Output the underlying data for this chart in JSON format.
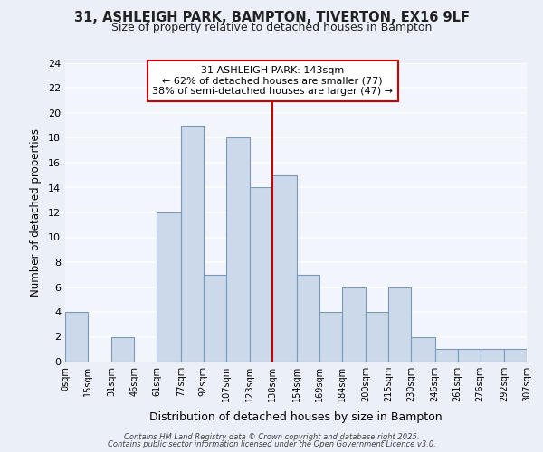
{
  "title_line1": "31, ASHLEIGH PARK, BAMPTON, TIVERTON, EX16 9LF",
  "title_line2": "Size of property relative to detached houses in Bampton",
  "xlabel": "Distribution of detached houses by size in Bampton",
  "ylabel": "Number of detached properties",
  "bin_edges": [
    0,
    15,
    31,
    46,
    61,
    77,
    92,
    107,
    123,
    138,
    154,
    169,
    184,
    200,
    215,
    230,
    246,
    261,
    276,
    292,
    307
  ],
  "values": [
    4,
    0,
    2,
    0,
    12,
    19,
    7,
    18,
    14,
    15,
    7,
    4,
    6,
    4,
    6,
    2,
    1,
    1,
    1,
    1
  ],
  "tick_labels": [
    "0sqm",
    "15sqm",
    "31sqm",
    "46sqm",
    "61sqm",
    "77sqm",
    "92sqm",
    "107sqm",
    "123sqm",
    "138sqm",
    "154sqm",
    "169sqm",
    "184sqm",
    "200sqm",
    "215sqm",
    "230sqm",
    "246sqm",
    "261sqm",
    "276sqm",
    "292sqm",
    "307sqm"
  ],
  "bar_color": "#ccd9ea",
  "bar_edge_color": "#7799bb",
  "reference_line_x": 138,
  "annotation_title": "31 ASHLEIGH PARK: 143sqm",
  "annotation_line1": "← 62% of detached houses are smaller (77)",
  "annotation_line2": "38% of semi-detached houses are larger (47) →",
  "annotation_box_color": "#ffffff",
  "annotation_box_edge_color": "#cc0000",
  "vline_color": "#cc0000",
  "ylim": [
    0,
    24
  ],
  "yticks": [
    0,
    2,
    4,
    6,
    8,
    10,
    12,
    14,
    16,
    18,
    20,
    22,
    24
  ],
  "footer_line1": "Contains HM Land Registry data © Crown copyright and database right 2025.",
  "footer_line2": "Contains public sector information licensed under the Open Government Licence v3.0.",
  "bg_color": "#eaeff8",
  "plot_bg_color": "#f2f6fc",
  "grid_color": "#dde6f0"
}
